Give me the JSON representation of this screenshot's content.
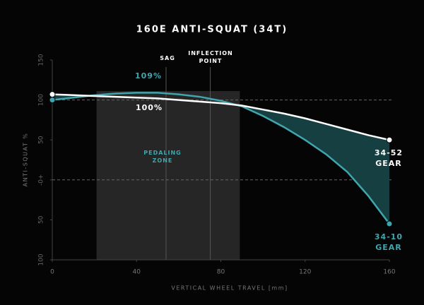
{
  "chart_data": {
    "type": "line",
    "title": "160E ANTI-SQUAT (34T)",
    "x_label": "VERTICAL WHEEL TRAVEL [mm]",
    "y_label": "ANTI-SQUAT %",
    "x": [
      0,
      10,
      20,
      30,
      40,
      50,
      60,
      70,
      80,
      90,
      100,
      110,
      120,
      130,
      140,
      150,
      160
    ],
    "series": [
      {
        "name": "34-52 GEAR",
        "color": "#ffffff",
        "values": [
          107,
          106,
          105,
          104,
          103,
          102,
          100,
          98,
          96,
          93,
          88,
          83,
          77,
          70,
          63,
          56,
          50
        ]
      },
      {
        "name": "34-10 GEAR",
        "color": "#3fa6ad",
        "values": [
          100,
          103,
          106,
          108,
          109,
          109,
          107,
          104,
          99,
          92,
          80,
          66,
          50,
          32,
          10,
          -20,
          -55
        ]
      }
    ],
    "xlim": [
      0,
      160
    ],
    "xticks": [
      0,
      40,
      80,
      120,
      160
    ],
    "ylim": [
      -100,
      150
    ],
    "yticks": [
      {
        "value": 150,
        "label": "150"
      },
      {
        "value": 100,
        "label": "100"
      },
      {
        "value": 50,
        "label": "50"
      },
      {
        "value": 0,
        "label": "-0+"
      },
      {
        "value": -50,
        "label": "50"
      },
      {
        "value": -100,
        "label": "100"
      }
    ],
    "reference_lines": [
      100,
      0
    ],
    "pedaling_zone": {
      "label": "PEDALING ZONE",
      "range": [
        21,
        89
      ]
    },
    "sag": {
      "label": "SAG",
      "x": 54
    },
    "inflection": {
      "label": "INFLECTION POINT",
      "x": 75
    },
    "annotations": [
      {
        "text": "109%",
        "value": 109
      },
      {
        "text": "100%",
        "value": 100
      }
    ],
    "fill_color": "#163f41"
  }
}
